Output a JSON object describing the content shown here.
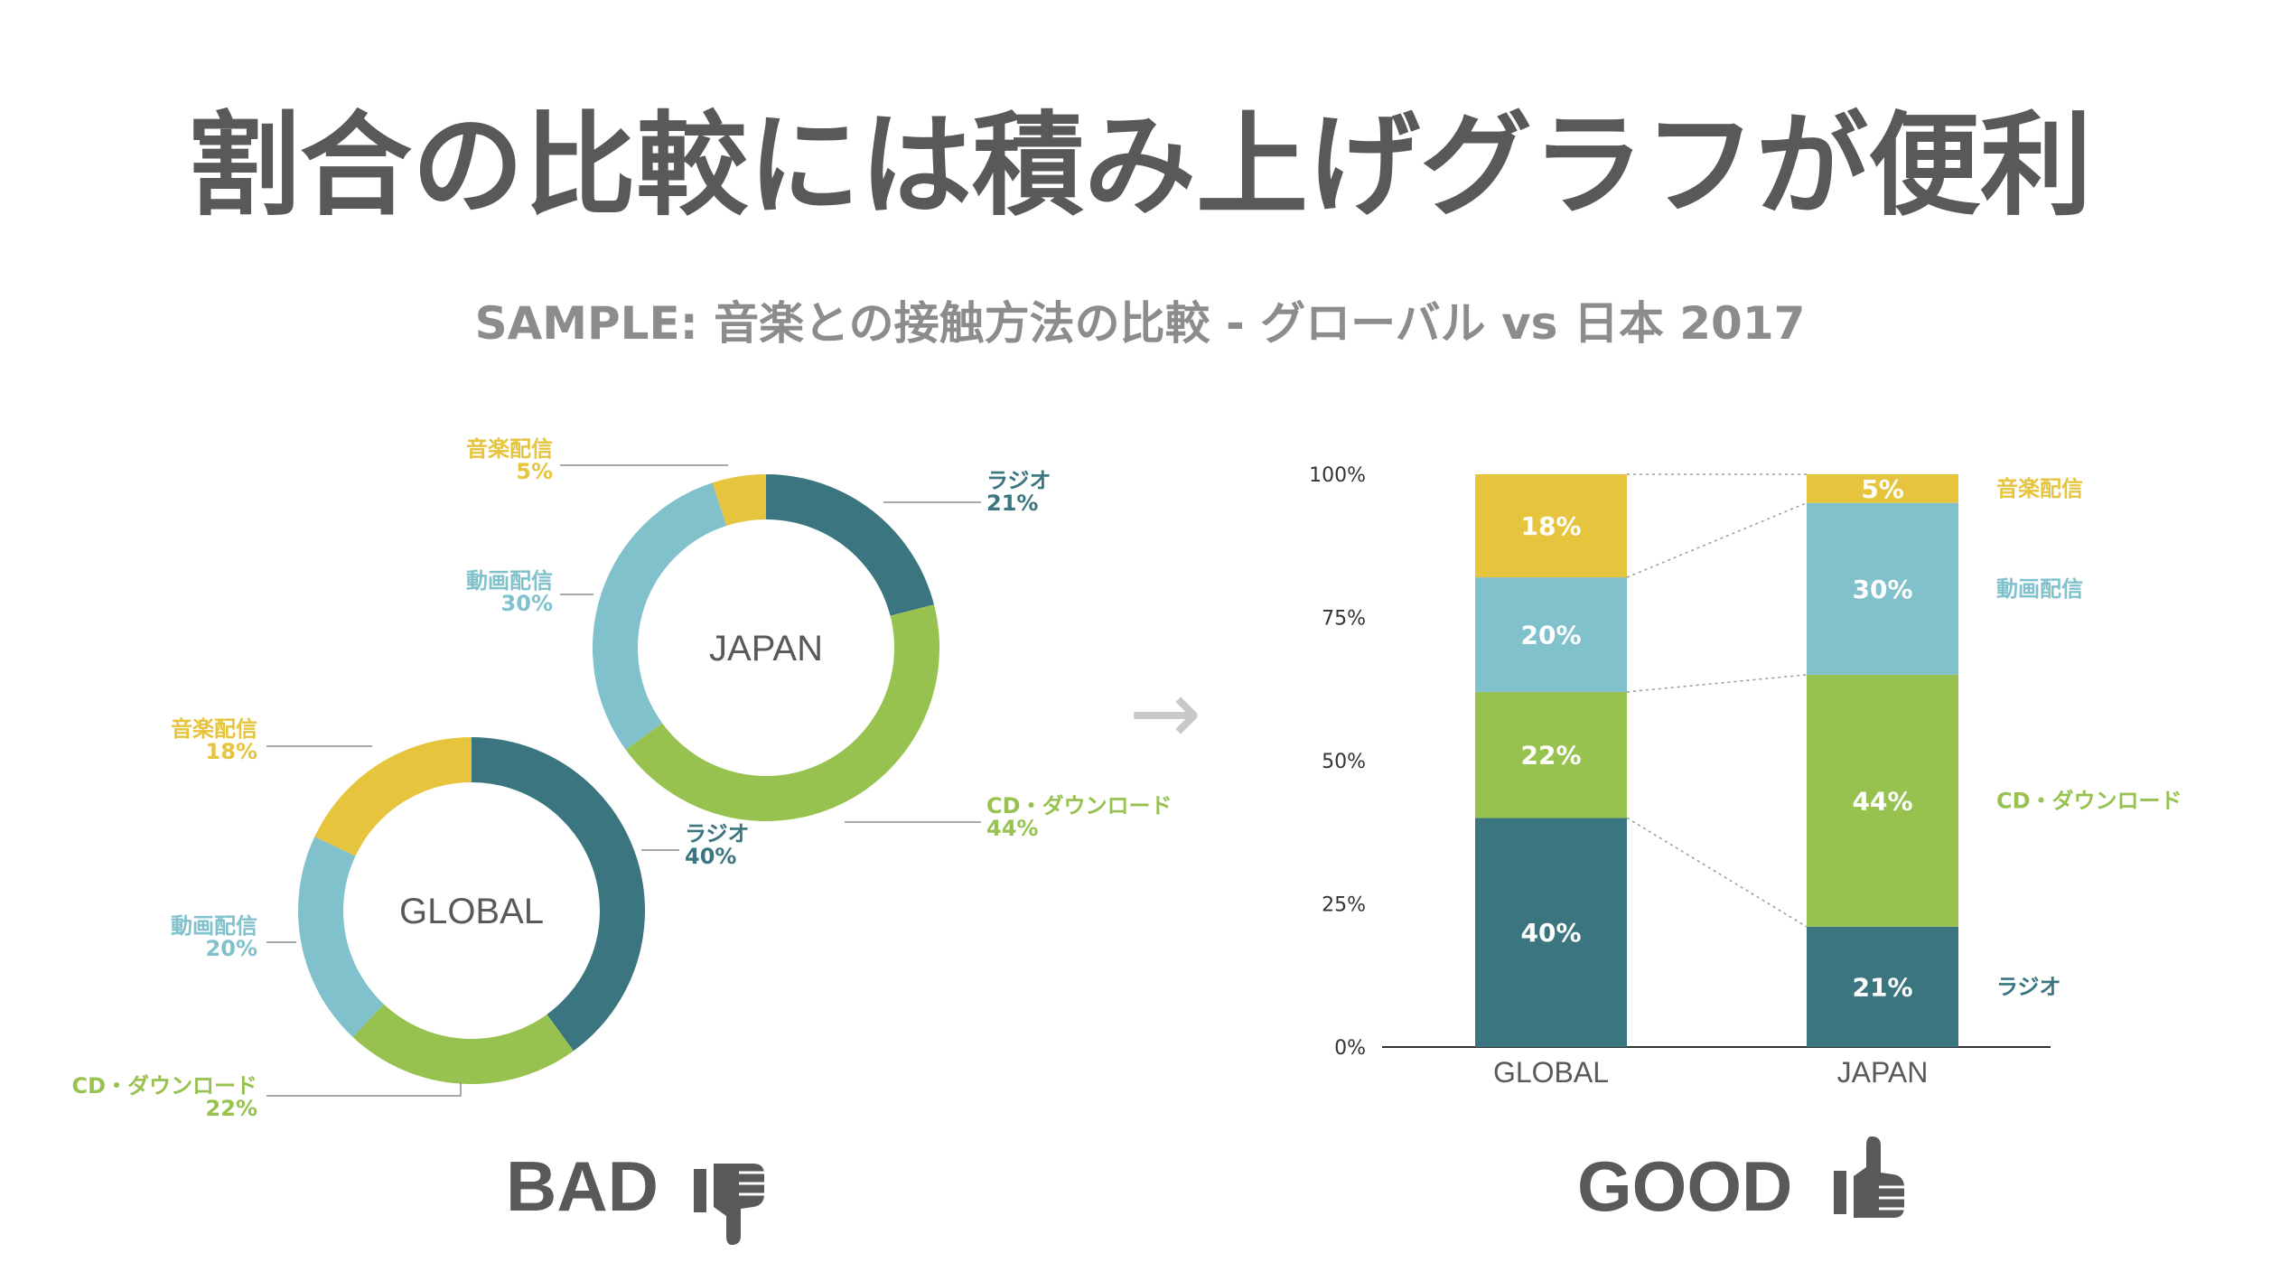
{
  "title": "割合の比較には積み上げグラフが便利",
  "subtitle": "SAMPLE:  音楽との接触方法の比較 - グローバル vs 日本 2017",
  "arrow": "→",
  "colors": {
    "radio": "#3b7680",
    "cd": "#97c250",
    "video": "#80c1cc",
    "streaming": "#e7c43e",
    "text_gray": "#595959",
    "subtitle_gray": "#8c8c8c"
  },
  "bad": {
    "label": "BAD",
    "icon": "thumbs-down-icon"
  },
  "good": {
    "label": "GOOD",
    "icon": "thumbs-up-icon"
  },
  "chart_data": [
    {
      "type": "pie",
      "donut": true,
      "center_label": "JAPAN",
      "slices": [
        {
          "label": "ラジオ",
          "value": 21,
          "value_label": "21%",
          "color_key": "radio"
        },
        {
          "label": "CD・ダウンロード",
          "value": 44,
          "value_label": "44%",
          "color_key": "cd"
        },
        {
          "label": "動画配信",
          "value": 30,
          "value_label": "30%",
          "color_key": "video"
        },
        {
          "label": "音楽配信",
          "value": 5,
          "value_label": "5%",
          "color_key": "streaming"
        }
      ]
    },
    {
      "type": "pie",
      "donut": true,
      "center_label": "GLOBAL",
      "slices": [
        {
          "label": "ラジオ",
          "value": 40,
          "value_label": "40%",
          "color_key": "radio"
        },
        {
          "label": "CD・ダウンロード",
          "value": 22,
          "value_label": "22%",
          "color_key": "cd"
        },
        {
          "label": "動画配信",
          "value": 20,
          "value_label": "20%",
          "color_key": "video"
        },
        {
          "label": "音楽配信",
          "value": 18,
          "value_label": "18%",
          "color_key": "streaming"
        }
      ]
    },
    {
      "type": "bar",
      "stacked": true,
      "categories": [
        "GLOBAL",
        "JAPAN"
      ],
      "ylim": [
        0,
        100
      ],
      "yticks": [
        "0%",
        "25%",
        "50%",
        "75%",
        "100%"
      ],
      "series": [
        {
          "name": "ラジオ",
          "color_key": "radio",
          "values": [
            40,
            21
          ],
          "labels": [
            "40%",
            "21%"
          ]
        },
        {
          "name": "CD・ダウンロード",
          "color_key": "cd",
          "values": [
            22,
            44
          ],
          "labels": [
            "22%",
            "44%"
          ]
        },
        {
          "name": "動画配信",
          "color_key": "video",
          "values": [
            20,
            30
          ],
          "labels": [
            "20%",
            "30%"
          ]
        },
        {
          "name": "音楽配信",
          "color_key": "streaming",
          "values": [
            18,
            5
          ],
          "labels": [
            "18%",
            "5%"
          ]
        }
      ]
    }
  ]
}
